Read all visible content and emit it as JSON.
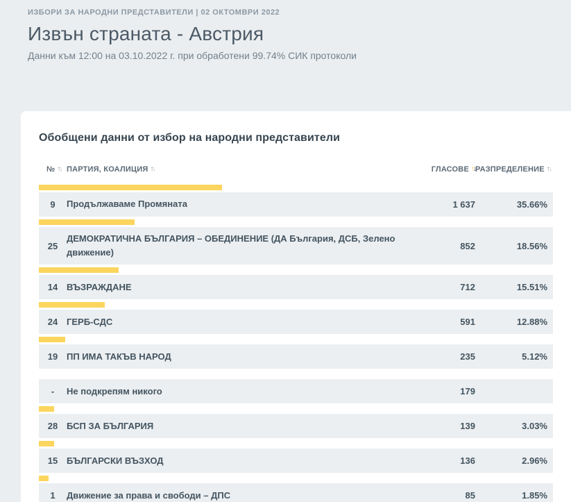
{
  "header": {
    "breadcrumb": "ИЗБОРИ ЗА НАРОДНИ ПРЕДСТАВИТЕЛИ | 02 ОКТОМВРИ 2022",
    "title": "Извън страната - Австрия",
    "subtitle": "Данни към 12:00 на 03.10.2022 г. при обработени 99.74% СИК протоколи"
  },
  "section": {
    "title": "Обобщени данни от избор на народни представители"
  },
  "table": {
    "columns": {
      "number": "№",
      "party": "ПАРТИЯ, КОАЛИЦИЯ",
      "votes": "ГЛАСОВЕ",
      "share": "РАЗПРЕДЕЛЕНИЕ"
    },
    "sort_up_glyph": "↑",
    "sort_down_glyph": "↓",
    "active_sort_column": "votes",
    "rows": [
      {
        "number": "9",
        "party": "Продължаваме Промяната",
        "votes": "1 637",
        "share": "35.66%",
        "bar_pct": 35.66
      },
      {
        "number": "25",
        "party": "ДЕМОКРАТИЧНА БЪЛГАРИЯ – ОБЕДИНЕНИЕ (ДА България, ДСБ, Зелено движение)",
        "votes": "852",
        "share": "18.56%",
        "bar_pct": 18.56
      },
      {
        "number": "14",
        "party": "ВЪЗРАЖДАНЕ",
        "votes": "712",
        "share": "15.51%",
        "bar_pct": 15.51
      },
      {
        "number": "24",
        "party": "ГЕРБ-СДС",
        "votes": "591",
        "share": "12.88%",
        "bar_pct": 12.88
      },
      {
        "number": "19",
        "party": "ПП ИМА ТАКЪВ НАРОД",
        "votes": "235",
        "share": "5.12%",
        "bar_pct": 5.12
      },
      {
        "number": "-",
        "party": "Не подкрепям никого",
        "votes": "179",
        "share": "",
        "bar_pct": null
      },
      {
        "number": "28",
        "party": "БСП ЗА БЪЛГАРИЯ",
        "votes": "139",
        "share": "3.03%",
        "bar_pct": 3.03
      },
      {
        "number": "15",
        "party": "БЪЛГАРСКИ ВЪЗХОД",
        "votes": "136",
        "share": "2.96%",
        "bar_pct": 2.96
      },
      {
        "number": "1",
        "party": "Движение за права и свободи – ДПС",
        "votes": "85",
        "share": "1.85%",
        "bar_pct": 1.85
      }
    ]
  },
  "colors": {
    "accent_yellow": "#fbd55e",
    "accent_sort_active": "#f0bb2f",
    "row_bg": "#ebeff2",
    "page_bg": "#ebeef0",
    "text_dark": "#44545f"
  }
}
